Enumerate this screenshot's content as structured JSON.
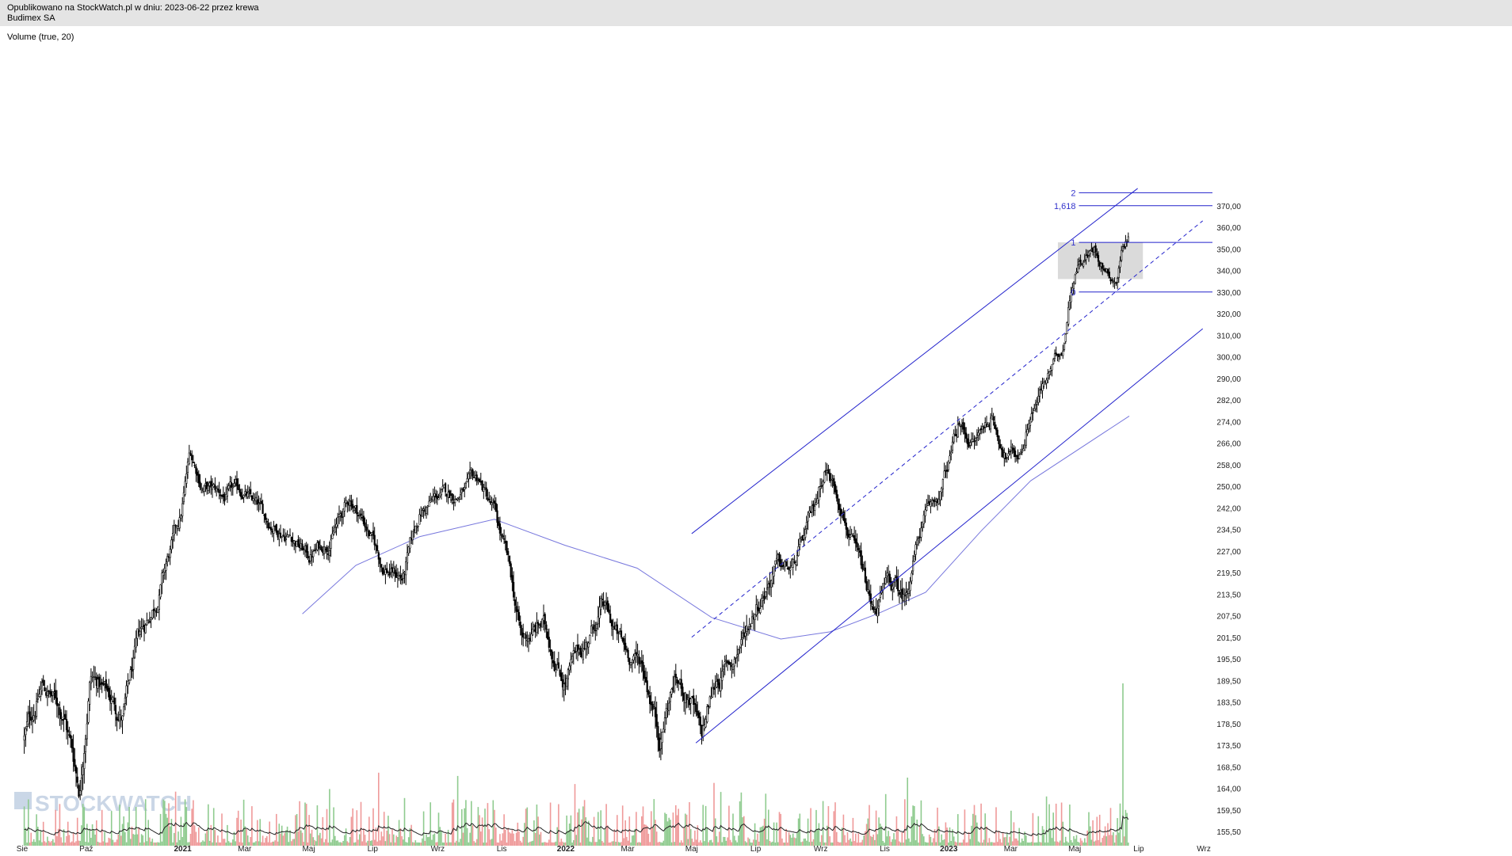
{
  "header": {
    "published_line": "Opublikowano na StockWatch.pl w dniu: 2023-06-22 przez krewa",
    "instrument": "Budimex SA"
  },
  "volume_label": "Volume (true, 20)",
  "watermark": "STOCKWATCH",
  "colors": {
    "candle": "#000000",
    "trendline": "#2222cc",
    "sma": "#7777dd",
    "fib_zone": "#d3d3d3",
    "volume_up": "#8fcb8f",
    "volume_down": "#ef9a9a",
    "volume_avg": "#222222",
    "header_bg": "#e4e4e4"
  },
  "chart_data": {
    "type": "candlestick",
    "y_ticks": [
      "370,00",
      "360,00",
      "350,00",
      "340,00",
      "330,00",
      "320,00",
      "310,00",
      "300,00",
      "290,00",
      "282,00",
      "274,00",
      "266,00",
      "258,00",
      "250,00",
      "242,00",
      "234,50",
      "227,00",
      "219,50",
      "213,50",
      "207,50",
      "201,50",
      "195,50",
      "189,50",
      "183,50",
      "178,50",
      "173,50",
      "168,50",
      "164,00",
      "159,50",
      "155,50"
    ],
    "x_ticks": [
      {
        "label": "Sie",
        "year": false
      },
      {
        "label": "Paź",
        "year": false
      },
      {
        "label": "2021",
        "year": true
      },
      {
        "label": "Mar",
        "year": false
      },
      {
        "label": "Maj",
        "year": false
      },
      {
        "label": "Lip",
        "year": false
      },
      {
        "label": "Wrz",
        "year": false
      },
      {
        "label": "Lis",
        "year": false
      },
      {
        "label": "2022",
        "year": true
      },
      {
        "label": "Mar",
        "year": false
      },
      {
        "label": "Maj",
        "year": false
      },
      {
        "label": "Lip",
        "year": false
      },
      {
        "label": "Wrz",
        "year": false
      },
      {
        "label": "Lis",
        "year": false
      },
      {
        "label": "2023",
        "year": true
      },
      {
        "label": "Mar",
        "year": false
      },
      {
        "label": "Maj",
        "year": false
      },
      {
        "label": "Lip",
        "year": false
      },
      {
        "label": "Wrz",
        "year": false
      }
    ],
    "fibonacci_levels": [
      {
        "label": "2",
        "price": 376
      },
      {
        "label": "1,618",
        "price": 370
      },
      {
        "label": "1",
        "price": 353
      },
      {
        "label": "0",
        "price": 330
      }
    ],
    "price_path": [
      [
        "2020-08-03",
        175
      ],
      [
        "2020-08-20",
        188
      ],
      [
        "2020-09-10",
        181
      ],
      [
        "2020-09-25",
        164
      ],
      [
        "2020-10-05",
        192
      ],
      [
        "2020-10-20",
        186
      ],
      [
        "2020-11-05",
        180
      ],
      [
        "2020-11-20",
        200
      ],
      [
        "2020-12-10",
        215
      ],
      [
        "2020-12-30",
        238
      ],
      [
        "2021-01-08",
        262
      ],
      [
        "2021-01-20",
        250
      ],
      [
        "2021-02-10",
        246
      ],
      [
        "2021-02-28",
        248
      ],
      [
        "2021-03-20",
        238
      ],
      [
        "2021-04-15",
        233
      ],
      [
        "2021-05-01",
        225
      ],
      [
        "2021-05-20",
        231
      ],
      [
        "2021-06-10",
        245
      ],
      [
        "2021-06-25",
        236
      ],
      [
        "2021-07-10",
        222
      ],
      [
        "2021-07-30",
        218
      ],
      [
        "2021-08-15",
        240
      ],
      [
        "2021-09-01",
        246
      ],
      [
        "2021-09-20",
        247
      ],
      [
        "2021-10-10",
        252
      ],
      [
        "2021-10-25",
        240
      ],
      [
        "2021-11-05",
        225
      ],
      [
        "2021-11-20",
        200
      ],
      [
        "2021-12-10",
        205
      ],
      [
        "2021-12-31",
        190
      ],
      [
        "2022-01-20",
        200
      ],
      [
        "2022-02-05",
        210
      ],
      [
        "2022-02-25",
        198
      ],
      [
        "2022-03-15",
        194
      ],
      [
        "2022-04-01",
        176
      ],
      [
        "2022-04-15",
        190
      ],
      [
        "2022-05-01",
        184
      ],
      [
        "2022-05-10",
        174
      ],
      [
        "2022-05-25",
        190
      ],
      [
        "2022-06-10",
        195
      ],
      [
        "2022-06-30",
        210
      ],
      [
        "2022-07-20",
        222
      ],
      [
        "2022-08-05",
        220
      ],
      [
        "2022-08-25",
        240
      ],
      [
        "2022-09-05",
        258
      ],
      [
        "2022-09-20",
        245
      ],
      [
        "2022-10-05",
        225
      ],
      [
        "2022-10-20",
        208
      ],
      [
        "2022-11-05",
        216
      ],
      [
        "2022-11-20",
        212
      ],
      [
        "2022-12-05",
        235
      ],
      [
        "2022-12-25",
        248
      ],
      [
        "2023-01-10",
        272
      ],
      [
        "2023-01-25",
        266
      ],
      [
        "2023-02-10",
        276
      ],
      [
        "2023-02-25",
        262
      ],
      [
        "2023-03-10",
        262
      ],
      [
        "2023-03-20",
        278
      ],
      [
        "2023-04-05",
        290
      ],
      [
        "2023-04-20",
        305
      ],
      [
        "2023-04-28",
        335
      ],
      [
        "2023-05-05",
        345
      ],
      [
        "2023-05-20",
        350
      ],
      [
        "2023-06-01",
        340
      ],
      [
        "2023-06-10",
        336
      ],
      [
        "2023-06-15",
        350
      ],
      [
        "2023-06-22",
        358
      ]
    ],
    "sma_path": [
      [
        "2021-04-25",
        208
      ],
      [
        "2021-06-15",
        222
      ],
      [
        "2021-08-15",
        232
      ],
      [
        "2021-10-25",
        238
      ],
      [
        "2021-12-31",
        229
      ],
      [
        "2022-03-10",
        221
      ],
      [
        "2022-05-20",
        207
      ],
      [
        "2022-07-25",
        201
      ],
      [
        "2022-09-10",
        203
      ],
      [
        "2022-10-25",
        208
      ],
      [
        "2022-12-10",
        214
      ],
      [
        "2023-02-01",
        234
      ],
      [
        "2023-03-20",
        252
      ],
      [
        "2023-06-22",
        276
      ]
    ],
    "channel_upper": [
      [
        "2022-05-01",
        233
      ],
      [
        "2023-06-30",
        378
      ]
    ],
    "channel_mid": [
      [
        "2022-05-01",
        201.5
      ],
      [
        "2023-08-31",
        363
      ]
    ],
    "channel_lower": [
      [
        "2022-05-05",
        174
      ],
      [
        "2023-08-31",
        313
      ]
    ],
    "fib_zone": {
      "from": "2023-04-15",
      "to": "2023-07-05",
      "low": 336,
      "high": 353
    },
    "notable_volume_spike": {
      "date": "2023-06-16",
      "relative": 1.0
    }
  }
}
